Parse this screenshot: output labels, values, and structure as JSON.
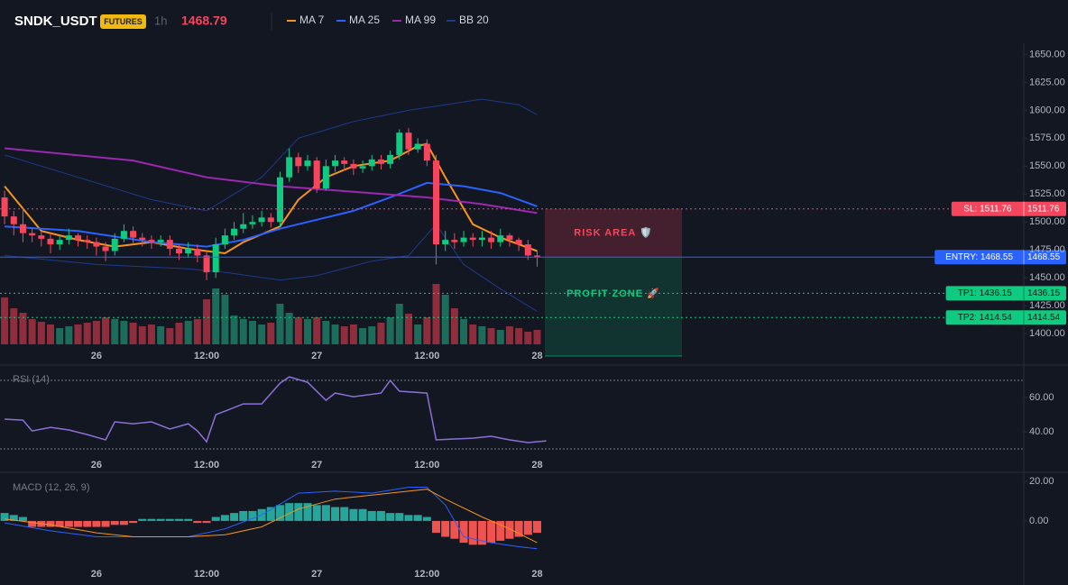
{
  "header": {
    "symbol": "SNDK_USDT",
    "badge": "FUTURES",
    "interval": "1h",
    "last_price": 1468.79
  },
  "chart_data": [
    {
      "type": "candlestick",
      "xlim": [
        -0.5,
        111
      ],
      "ylim": [
        1380,
        1660
      ],
      "yticks": [
        {
          "value": 1400,
          "label": "1400.00"
        },
        {
          "value": 1425,
          "label": "1425.00"
        },
        {
          "value": 1450,
          "label": "1450.00"
        },
        {
          "value": 1475,
          "label": "1475.00"
        },
        {
          "value": 1500,
          "label": "1500.00"
        },
        {
          "value": 1525,
          "label": "1525.00"
        },
        {
          "value": 1550,
          "label": "1550.00"
        },
        {
          "value": 1575,
          "label": "1575.00"
        },
        {
          "value": 1600,
          "label": "1600.00"
        },
        {
          "value": 1625,
          "label": "1625.00"
        },
        {
          "value": 1650,
          "label": "1650.00"
        }
      ],
      "xticks": [
        {
          "value": 10,
          "label": "26"
        },
        {
          "value": 22,
          "label": "12:00"
        },
        {
          "value": 34,
          "label": "27"
        },
        {
          "value": 46,
          "label": "12:00"
        },
        {
          "value": 58,
          "label": "28"
        }
      ],
      "up_color": "#0ecb81",
      "down_color": "#f6465d",
      "open": [
        1522,
        1505,
        1498,
        1490,
        1488,
        1485,
        1480,
        1484,
        1488,
        1484,
        1482,
        1478,
        1474,
        1485,
        1492,
        1486,
        1484,
        1482,
        1484,
        1476,
        1472,
        1476,
        1470,
        1455,
        1480,
        1488,
        1494,
        1498,
        1500,
        1504,
        1500,
        1540,
        1558,
        1550,
        1555,
        1530,
        1550,
        1555,
        1552,
        1548,
        1550,
        1556,
        1552,
        1560,
        1580,
        1565,
        1570,
        1555,
        1480,
        1484,
        1482,
        1486,
        1484,
        1486,
        1482,
        1488,
        1484,
        1480,
        1470
      ],
      "high": [
        1528,
        1510,
        1512,
        1495,
        1492,
        1490,
        1488,
        1494,
        1490,
        1488,
        1486,
        1482,
        1490,
        1498,
        1496,
        1490,
        1488,
        1488,
        1488,
        1480,
        1482,
        1480,
        1474,
        1486,
        1494,
        1500,
        1508,
        1506,
        1510,
        1508,
        1545,
        1566,
        1562,
        1560,
        1558,
        1556,
        1560,
        1558,
        1556,
        1555,
        1560,
        1560,
        1564,
        1583,
        1584,
        1575,
        1574,
        1560,
        1492,
        1490,
        1492,
        1490,
        1492,
        1492,
        1494,
        1490,
        1486,
        1484,
        1474
      ],
      "low": [
        1498,
        1488,
        1482,
        1482,
        1478,
        1472,
        1475,
        1480,
        1478,
        1476,
        1470,
        1465,
        1470,
        1482,
        1480,
        1478,
        1476,
        1478,
        1470,
        1466,
        1468,
        1464,
        1448,
        1450,
        1476,
        1484,
        1490,
        1494,
        1496,
        1495,
        1496,
        1536,
        1544,
        1546,
        1526,
        1528,
        1545,
        1546,
        1542,
        1544,
        1546,
        1547,
        1548,
        1556,
        1560,
        1562,
        1550,
        1462,
        1474,
        1476,
        1478,
        1478,
        1478,
        1476,
        1478,
        1478,
        1474,
        1466,
        1460
      ],
      "close": [
        1505,
        1498,
        1490,
        1488,
        1485,
        1480,
        1484,
        1488,
        1484,
        1482,
        1478,
        1474,
        1485,
        1492,
        1486,
        1484,
        1482,
        1484,
        1476,
        1472,
        1476,
        1470,
        1455,
        1480,
        1488,
        1494,
        1498,
        1500,
        1504,
        1500,
        1540,
        1558,
        1550,
        1555,
        1530,
        1550,
        1555,
        1552,
        1548,
        1550,
        1556,
        1552,
        1560,
        1580,
        1565,
        1570,
        1555,
        1480,
        1484,
        1482,
        1486,
        1484,
        1486,
        1482,
        1488,
        1484,
        1480,
        1470,
        1468.79
      ],
      "volume": {
        "ylim": [
          0,
          100
        ],
        "up_color": "#1d6b5a",
        "down_color": "#8e2e3c",
        "values": [
          52,
          40,
          35,
          28,
          25,
          22,
          18,
          20,
          22,
          24,
          26,
          30,
          28,
          26,
          24,
          20,
          22,
          20,
          18,
          24,
          26,
          28,
          50,
          62,
          55,
          32,
          28,
          26,
          22,
          24,
          45,
          35,
          30,
          28,
          30,
          26,
          22,
          20,
          22,
          18,
          20,
          24,
          30,
          45,
          34,
          22,
          30,
          67,
          55,
          40,
          28,
          22,
          20,
          18,
          16,
          20,
          18,
          14,
          16
        ]
      },
      "series": [
        {
          "name": "MA 7",
          "color": "#f7931a",
          "x": [
            0,
            4,
            8,
            12,
            16,
            20,
            24,
            26,
            30,
            32,
            35,
            38,
            42,
            45,
            46,
            48,
            51,
            54,
            58
          ],
          "values": [
            1532,
            1492,
            1484,
            1478,
            1482,
            1476,
            1472,
            1482,
            1496,
            1520,
            1540,
            1550,
            1555,
            1568,
            1570,
            1540,
            1498,
            1486,
            1474
          ]
        },
        {
          "name": "MA 25",
          "color": "#2962ff",
          "x": [
            0,
            8,
            16,
            22,
            26,
            30,
            34,
            38,
            42,
            46,
            50,
            54,
            58
          ],
          "values": [
            1496,
            1492,
            1482,
            1478,
            1484,
            1494,
            1502,
            1510,
            1522,
            1535,
            1532,
            1526,
            1514
          ]
        },
        {
          "name": "MA 99",
          "color": "#9c27b0",
          "x": [
            0,
            14,
            22,
            30,
            38,
            46,
            52,
            58
          ],
          "values": [
            1566,
            1555,
            1540,
            1532,
            1527,
            1522,
            1516,
            1508
          ]
        }
      ],
      "bands": {
        "name": "BB 20",
        "color": "#1e3a8a",
        "upper_x": [
          0,
          8,
          16,
          22,
          28,
          32,
          38,
          44,
          48,
          52,
          56,
          58
        ],
        "upper": [
          1560,
          1540,
          1520,
          1510,
          1540,
          1575,
          1590,
          1600,
          1605,
          1610,
          1605,
          1596
        ],
        "lower_x": [
          0,
          10,
          20,
          24,
          30,
          34,
          40,
          44,
          47,
          50,
          54,
          58
        ],
        "lower": [
          1470,
          1462,
          1458,
          1455,
          1448,
          1452,
          1465,
          1470,
          1498,
          1462,
          1440,
          1420
        ]
      },
      "levels": [
        {
          "label": "SL: 1511.76",
          "value": 1511.76,
          "color": "#f6465d"
        },
        {
          "label": "ENTRY: 1468.55",
          "value": 1468.55,
          "color": "#2962ff"
        },
        {
          "label": "TP1: 1436.15",
          "value": 1436.15,
          "color": "#0ecb81"
        },
        {
          "label": "TP2: 1414.54",
          "value": 1414.54,
          "color": "#0ecb81"
        }
      ],
      "zones": [
        {
          "label": "RISK AREA 🛡️",
          "color": "#f6465d"
        },
        {
          "label": "PROFIT ZONE 🚀",
          "color": "#0ecb81"
        }
      ]
    },
    {
      "type": "line",
      "title": "RSI (14)",
      "xlim": [
        -0.5,
        111
      ],
      "ylim": [
        19.5,
        77.4
      ],
      "color": "#8c6fd6",
      "yticks": [
        {
          "value": 60,
          "label": "60.00"
        },
        {
          "value": 40,
          "label": "40.00"
        }
      ],
      "levels": [
        70,
        30
      ],
      "xticks": [
        {
          "value": 10,
          "label": "26"
        },
        {
          "value": 22,
          "label": "12:00"
        },
        {
          "value": 34,
          "label": "27"
        },
        {
          "value": 46,
          "label": "12:00"
        },
        {
          "value": 58,
          "label": "28"
        }
      ],
      "x": [
        0,
        2,
        3,
        5,
        7,
        9,
        11,
        12,
        14,
        16,
        18,
        20,
        21,
        22,
        23,
        26,
        28,
        30,
        31,
        33,
        35,
        36,
        38,
        41,
        42,
        43,
        46,
        47,
        51,
        53,
        55,
        57,
        59
      ],
      "values": [
        47.4,
        46.8,
        40.5,
        42.6,
        41.1,
        38.4,
        35.3,
        45.8,
        44.7,
        45.8,
        41.6,
        44.7,
        40.5,
        34.2,
        50,
        56.3,
        56.3,
        68.4,
        72.1,
        68.9,
        58.4,
        62.6,
        60.5,
        62.6,
        70,
        63.7,
        62.6,
        35.3,
        36.3,
        37.4,
        35.3,
        33.7,
        34.7
      ]
    },
    {
      "type": "macd",
      "title": "MACD (12, 26, 9)",
      "xlim": [
        -0.5,
        111
      ],
      "ylim": [
        -21.4,
        22.7
      ],
      "yticks": [
        {
          "value": 20,
          "label": "20.00"
        },
        {
          "value": 0,
          "label": "0.00"
        }
      ],
      "xticks": [
        {
          "value": 10,
          "label": "26"
        },
        {
          "value": 22,
          "label": "12:00"
        },
        {
          "value": 34,
          "label": "27"
        },
        {
          "value": 46,
          "label": "12:00"
        },
        {
          "value": 58,
          "label": "28"
        }
      ],
      "up_color": "#26a69a",
      "down_color": "#ef5350",
      "histogram": [
        4,
        3,
        2,
        -3,
        -3,
        -3,
        -3,
        -3,
        -3,
        -3,
        -3,
        -3,
        -2,
        -2,
        -1,
        1,
        1,
        1,
        1,
        1,
        1,
        -1,
        -1,
        2,
        3,
        4,
        5,
        5,
        6,
        7,
        8,
        9,
        9,
        9,
        8,
        8,
        7,
        7,
        6,
        6,
        5,
        5,
        4,
        4,
        3,
        3,
        2,
        -6,
        -8,
        -9,
        -11,
        -12,
        -12,
        -11,
        -10,
        -9,
        -8,
        -7,
        -6
      ],
      "series": [
        {
          "color": "#2962ff",
          "x": [
            0,
            5,
            10,
            15,
            20,
            24,
            28,
            32,
            36,
            40,
            44,
            46,
            48,
            50,
            53,
            56,
            58
          ],
          "values": [
            -1,
            -5,
            -8,
            -8,
            -8,
            -4,
            3,
            14,
            15,
            14,
            17,
            17,
            8,
            -8,
            -11,
            -13,
            -14
          ]
        },
        {
          "color": "#f7931a",
          "x": [
            0,
            5,
            10,
            14,
            20,
            24,
            28,
            32,
            36,
            40,
            44,
            46,
            48,
            52,
            55,
            58
          ],
          "values": [
            1,
            -2,
            -6,
            -8,
            -8,
            -7,
            -3,
            6,
            11,
            13,
            15,
            16,
            11,
            2,
            -4,
            -11
          ]
        }
      ]
    }
  ]
}
